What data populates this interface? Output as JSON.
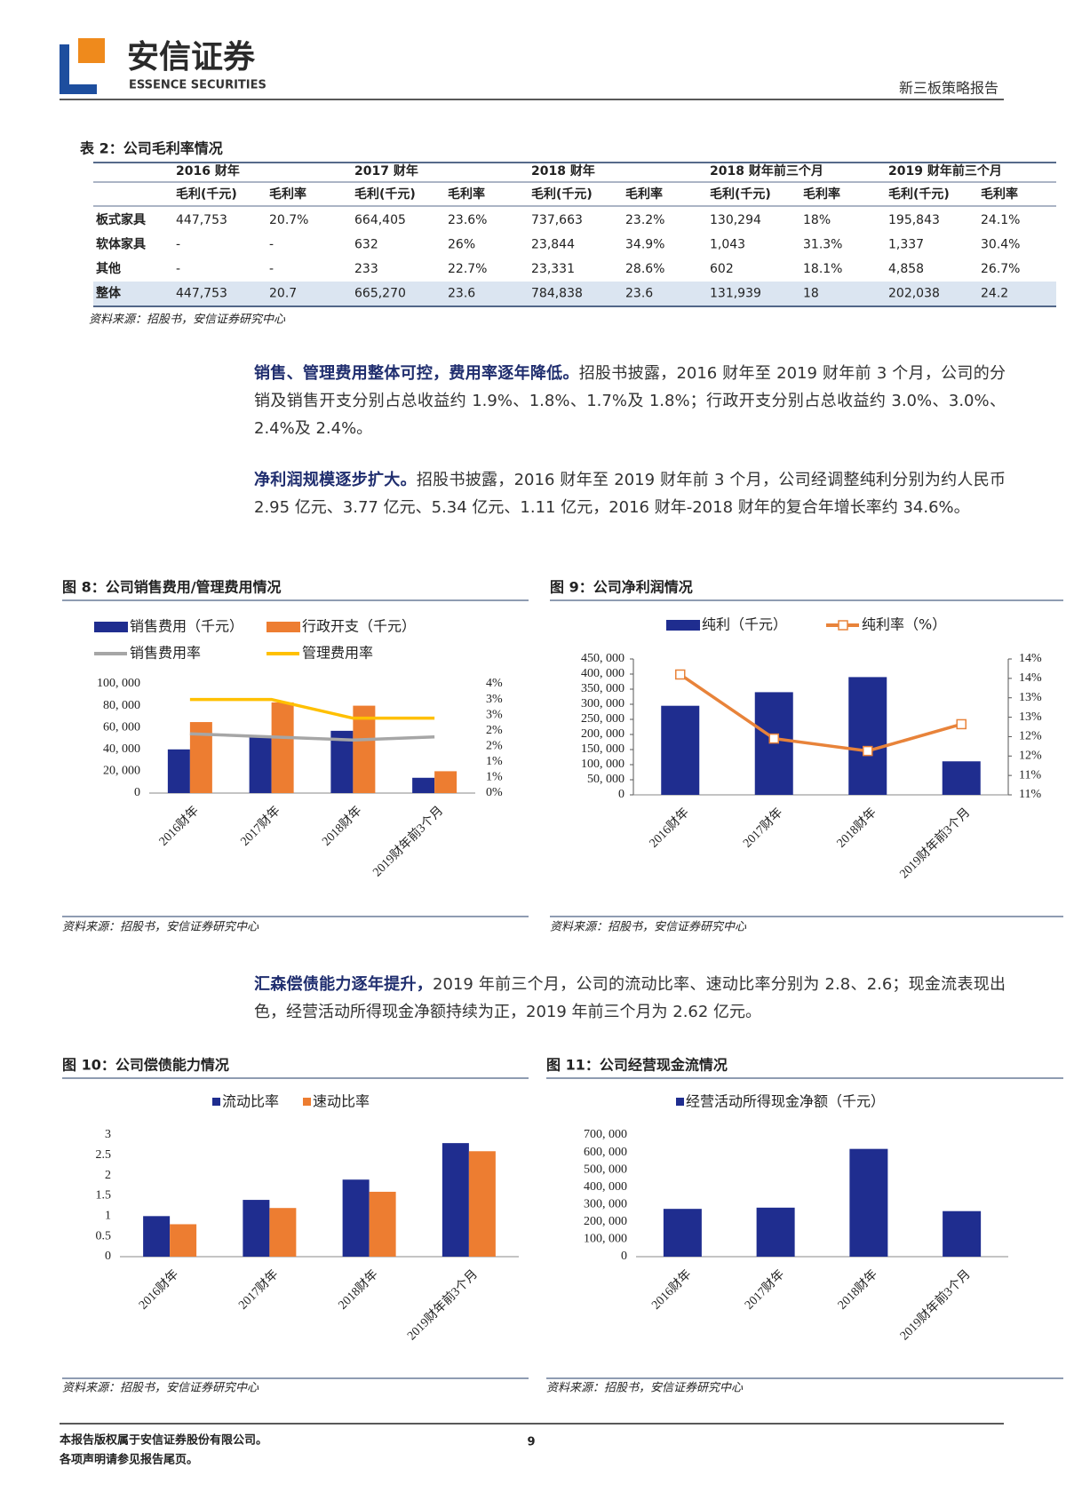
{
  "header": {
    "logo_cn": "安信证券",
    "logo_en": "ESSENCE SECURITIES",
    "report": "新三板策略报告"
  },
  "table": {
    "caption": "表 2：公司毛利率情况",
    "groups": [
      "2016 财年",
      "2017 财年",
      "2018 财年",
      "2018 财年前三个月",
      "2019 财年前三个月"
    ],
    "subheaders": [
      "毛利(千元)",
      "毛利率",
      "毛利(千元)",
      "毛利率",
      "毛利(千元)",
      "毛利率",
      "毛利(千元)",
      "毛利率",
      "毛利(千元)",
      "毛利率"
    ],
    "rows": [
      [
        "板式家具",
        "447,753",
        "20.7%",
        "664,405",
        "23.6%",
        "737,663",
        "23.2%",
        "130,294",
        "18%",
        "195,843",
        "24.1%"
      ],
      [
        "软体家具",
        "-",
        "-",
        "632",
        "26%",
        "23,844",
        "34.9%",
        "1,043",
        "31.3%",
        "1,337",
        "30.4%"
      ],
      [
        "其他",
        "-",
        "-",
        "233",
        "22.7%",
        "23,331",
        "28.6%",
        "602",
        "18.1%",
        "4,858",
        "26.7%"
      ],
      [
        "整体",
        "447,753",
        "20.7",
        "665,270",
        "23.6",
        "784,838",
        "23.6",
        "131,939",
        "18",
        "202,038",
        "24.2"
      ]
    ],
    "source": "资料来源：招股书，安信证券研究中心"
  },
  "paragraphs": [
    {
      "lead": "销售、管理费用整体可控，费用率逐年降低。",
      "body": "招股书披露，2016 财年至 2019 财年前 3 个月，公司的分销及销售开支分别占总收益约 1.9%、1.8%、1.7%及 1.8%；行政开支分别占总收益约 3.0%、3.0%、2.4%及 2.4%。"
    },
    {
      "lead": "净利润规模逐步扩大。",
      "body": "招股书披露，2016 财年至 2019 财年前 3 个月，公司经调整纯利分别为约人民币 2.95 亿元、3.77 亿元、5.34 亿元、1.11 亿元，2016 财年-2018 财年的复合年增长率约 34.6%。"
    },
    {
      "lead": "汇森偿债能力逐年提升，",
      "body": "2019 年前三个月，公司的流动比率、速动比率分别为 2.8、2.6；现金流表现出色，经营活动所得现金净额持续为正，2019 年前三个月为 2.62 亿元。"
    }
  ],
  "chart_data": [
    {
      "type": "bar",
      "title": "图 8：公司销售费用/管理费用情况",
      "source": "资料来源：招股书，安信证券研究中心",
      "categories": [
        "2016财年",
        "2017财年",
        "2018财年",
        "2019财年前3个月"
      ],
      "series": [
        {
          "name": "销售费用（千元）",
          "color": "#1f2d8f",
          "values": [
            40000,
            51000,
            57000,
            14000
          ]
        },
        {
          "name": "行政开支（千元）",
          "color": "#ed7d31",
          "values": [
            65000,
            83000,
            80000,
            20000
          ]
        },
        {
          "name": "销售费用率",
          "type": "line",
          "axis": "y2",
          "color": "#a6a6a6",
          "values": [
            1.9,
            1.8,
            1.7,
            1.8
          ]
        },
        {
          "name": "管理费用率",
          "type": "line",
          "axis": "y2",
          "color": "#ffc000",
          "values": [
            3.0,
            3.0,
            2.4,
            2.4
          ]
        }
      ],
      "ylim": [
        0,
        100000
      ],
      "yticks": [
        0,
        {
          "value": 20000,
          "label": "20, 000"
        },
        {
          "value": 40000,
          "label": "40, 000"
        },
        {
          "value": 60000,
          "label": "60, 000"
        },
        {
          "value": 80000,
          "label": "80, 000"
        },
        {
          "value": 100000,
          "label": "100, 000"
        }
      ],
      "y2lim": [
        0,
        3.5
      ],
      "y2ticks": [
        {
          "value": 0,
          "label": "0%"
        },
        {
          "value": 0.5,
          "label": "1%"
        },
        {
          "value": 1,
          "label": "1%"
        },
        {
          "value": 1.5,
          "label": "2%"
        },
        {
          "value": 2,
          "label": "2%"
        },
        {
          "value": 2.5,
          "label": "3%"
        },
        {
          "value": 3,
          "label": "3%"
        },
        {
          "value": 3.5,
          "label": "4%"
        }
      ]
    },
    {
      "type": "bar",
      "title": "图 9：公司净利润情况",
      "source": "资料来源：招股书，安信证券研究中心",
      "categories": [
        "2016财年",
        "2017财年",
        "2018财年",
        "2019财年前3个月"
      ],
      "series": [
        {
          "name": "纯利（千元）",
          "color": "#1f2d8f",
          "values": [
            295000,
            340000,
            390000,
            111000
          ]
        },
        {
          "name": "纯利率（%）",
          "type": "line",
          "axis": "y2",
          "marker": "square",
          "color": "#e8833a",
          "values": [
            13.7,
            12.05,
            11.73,
            12.42
          ]
        }
      ],
      "ylim": [
        0,
        450000
      ],
      "yticks": [
        0,
        {
          "value": 50000,
          "label": "50, 000"
        },
        {
          "value": 100000,
          "label": "100, 000"
        },
        {
          "value": 150000,
          "label": "150, 000"
        },
        {
          "value": 200000,
          "label": "200, 000"
        },
        {
          "value": 250000,
          "label": "250, 000"
        },
        {
          "value": 300000,
          "label": "300, 000"
        },
        {
          "value": 350000,
          "label": "350, 000"
        },
        {
          "value": 400000,
          "label": "400, 000"
        },
        {
          "value": 450000,
          "label": "450, 000"
        }
      ],
      "y2lim": [
        10.6,
        14.1
      ],
      "y2ticks": [
        {
          "value": 10.6,
          "label": "11%"
        },
        {
          "value": 11.1,
          "label": "11%"
        },
        {
          "value": 11.6,
          "label": "12%"
        },
        {
          "value": 12.1,
          "label": "12%"
        },
        {
          "value": 12.6,
          "label": "13%"
        },
        {
          "value": 13.1,
          "label": "13%"
        },
        {
          "value": 13.6,
          "label": "14%"
        },
        {
          "value": 14.1,
          "label": "14%"
        }
      ]
    },
    {
      "type": "bar",
      "title": "图 10：公司偿债能力情况",
      "source": "资料来源：招股书，安信证券研究中心",
      "categories": [
        "2016财年",
        "2017财年",
        "2018财年",
        "2019财年前3个月"
      ],
      "series": [
        {
          "name": "流动比率",
          "color": "#1f2d8f",
          "values": [
            1.0,
            1.4,
            1.9,
            2.8
          ]
        },
        {
          "name": "速动比率",
          "color": "#ed7d31",
          "values": [
            0.8,
            1.2,
            1.6,
            2.6
          ]
        }
      ],
      "ylim": [
        0,
        3
      ],
      "yticks": [
        0,
        0.5,
        1,
        1.5,
        2,
        2.5,
        3
      ]
    },
    {
      "type": "bar",
      "title": "图 11：公司经营现金流情况",
      "source": "资料来源：招股书，安信证券研究中心",
      "categories": [
        "2016财年",
        "2017财年",
        "2018财年",
        "2019财年前3个月"
      ],
      "series": [
        {
          "name": "经营活动所得现金净额（千元）",
          "color": "#1f2d8f",
          "values": [
            275000,
            282000,
            620000,
            262000
          ]
        }
      ],
      "ylim": [
        0,
        700000
      ],
      "yticks": [
        0,
        {
          "value": 100000,
          "label": "100, 000"
        },
        {
          "value": 200000,
          "label": "200, 000"
        },
        {
          "value": 300000,
          "label": "300, 000"
        },
        {
          "value": 400000,
          "label": "400, 000"
        },
        {
          "value": 500000,
          "label": "500, 000"
        },
        {
          "value": 600000,
          "label": "600, 000"
        },
        {
          "value": 700000,
          "label": "700, 000"
        }
      ]
    }
  ],
  "footer": {
    "line1": "本报告版权属于安信证券股份有限公司。",
    "line2": "各项声明请参见报告尾页。",
    "page": "9"
  }
}
